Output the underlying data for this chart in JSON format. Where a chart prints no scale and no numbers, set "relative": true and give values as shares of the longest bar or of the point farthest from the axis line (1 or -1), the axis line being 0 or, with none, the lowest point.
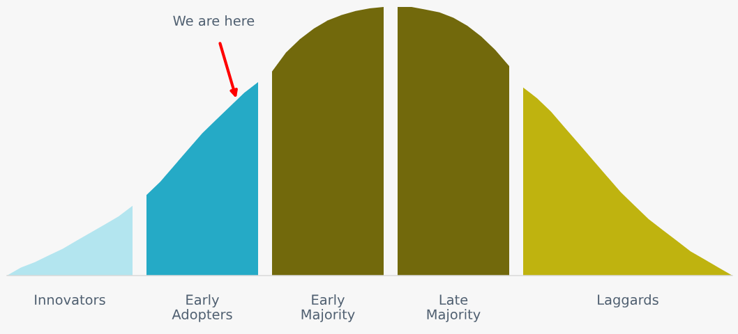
{
  "chart_data": {
    "type": "area",
    "relative": true,
    "categories": [
      null,
      null,
      null,
      null,
      null,
      null,
      null,
      null,
      null,
      null,
      null,
      null,
      null,
      null,
      null,
      null,
      null,
      null,
      null,
      null,
      null,
      null,
      null,
      null,
      null,
      null,
      null,
      null,
      null,
      null,
      null,
      null,
      null,
      null,
      null,
      null,
      null,
      null,
      null,
      null,
      null,
      null,
      null,
      null,
      null,
      null,
      null,
      null,
      null,
      null,
      null,
      null,
      null
    ],
    "series": [
      {
        "name": "Innovators",
        "color": "#b3e5ef",
        "values": [
          0,
          0.03,
          0.05,
          0.075,
          0.1,
          0.13,
          0.16,
          0.19,
          0.22,
          0.26,
          null,
          null,
          null,
          null,
          null,
          null,
          null,
          null,
          null,
          null,
          null,
          null,
          null,
          null,
          null,
          null,
          null,
          null,
          null,
          null,
          null,
          null,
          null,
          null,
          null,
          null,
          null,
          null,
          null,
          null,
          null,
          null,
          null,
          null,
          null,
          null,
          null,
          null,
          null,
          null,
          null,
          null,
          null
        ]
      },
      {
        "name": "Early\nAdopters",
        "color": "#25aac6",
        "values": [
          null,
          null,
          null,
          null,
          null,
          null,
          null,
          null,
          null,
          null,
          0.3,
          0.35,
          0.41,
          0.47,
          0.53,
          0.58,
          0.63,
          0.68,
          0.72,
          null,
          null,
          null,
          null,
          null,
          null,
          null,
          null,
          null,
          null,
          null,
          null,
          null,
          null,
          null,
          null,
          null,
          null,
          null,
          null,
          null,
          null,
          null,
          null,
          null,
          null,
          null,
          null,
          null,
          null,
          null,
          null,
          null,
          null
        ]
      },
      {
        "name": "Early\nMajority",
        "color": "#72690c",
        "values": [
          null,
          null,
          null,
          null,
          null,
          null,
          null,
          null,
          null,
          null,
          null,
          null,
          null,
          null,
          null,
          null,
          null,
          null,
          null,
          0.76,
          0.83,
          0.88,
          0.92,
          0.95,
          0.97,
          0.985,
          0.995,
          1.0,
          null,
          null,
          null,
          null,
          null,
          null,
          null,
          null,
          null,
          null,
          null,
          null,
          null,
          null,
          null,
          null,
          null,
          null,
          null,
          null,
          null,
          null,
          null,
          null,
          null
        ]
      },
      {
        "name": "Late\nMajority",
        "color": "#72690c",
        "values": [
          null,
          null,
          null,
          null,
          null,
          null,
          null,
          null,
          null,
          null,
          null,
          null,
          null,
          null,
          null,
          null,
          null,
          null,
          null,
          null,
          null,
          null,
          null,
          null,
          null,
          null,
          null,
          null,
          1.0,
          1.0,
          0.99,
          0.98,
          0.96,
          0.93,
          0.89,
          0.84,
          0.78,
          null,
          null,
          null,
          null,
          null,
          null,
          null,
          null,
          null,
          null,
          null,
          null,
          null,
          null,
          null,
          null
        ]
      },
      {
        "name": "Laggards",
        "color": "#bfb30f",
        "values": [
          null,
          null,
          null,
          null,
          null,
          null,
          null,
          null,
          null,
          null,
          null,
          null,
          null,
          null,
          null,
          null,
          null,
          null,
          null,
          null,
          null,
          null,
          null,
          null,
          null,
          null,
          null,
          null,
          null,
          null,
          null,
          null,
          null,
          null,
          null,
          null,
          null,
          0.7,
          0.66,
          0.61,
          0.55,
          0.49,
          0.43,
          0.37,
          0.31,
          0.26,
          0.21,
          0.17,
          0.13,
          0.09,
          0.06,
          0.03,
          0
        ]
      }
    ],
    "annotations": [
      "We are here"
    ],
    "legend": false
  }
}
